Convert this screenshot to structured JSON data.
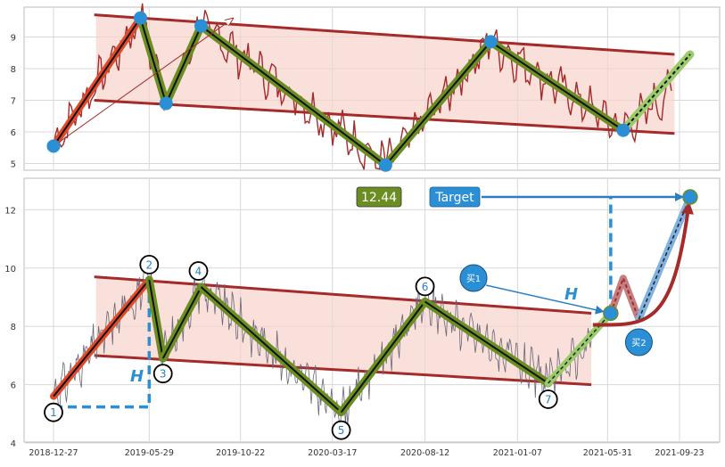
{
  "colors": {
    "channel_fill": "#f6d3cc",
    "channel_line": "#a52a2a",
    "price_top": "#a52a2a",
    "price_bottom": "#666677",
    "wave_outer": "#6b8e23",
    "wave_inner": "#111111",
    "marker": "#2b8fd6",
    "target_text": "#ffffff",
    "value_badge": "#6b8e23",
    "grid": "#d8d8d8",
    "dashed": "#2b8fd6"
  },
  "chart_data": [
    {
      "type": "line",
      "panel": "top",
      "title": "",
      "xlabel": "",
      "ylabel": "",
      "ylim": [
        4.75,
        10
      ],
      "ytick_labels": [
        "5",
        "6",
        "7",
        "8",
        "9"
      ],
      "grid": true,
      "x_range": [
        "2018-12-27",
        "2021-10-15"
      ],
      "channel": {
        "upper": [
          [
            "2019-03-05",
            9.7
          ],
          [
            "2021-09-15",
            8.45
          ]
        ],
        "lower": [
          [
            "2019-03-05",
            7.0
          ],
          [
            "2021-09-15",
            5.95
          ]
        ]
      },
      "pivots": [
        {
          "date": "2018-12-27",
          "value": 5.55
        },
        {
          "date": "2019-05-15",
          "value": 9.6
        },
        {
          "date": "2019-06-25",
          "value": 6.9
        },
        {
          "date": "2019-08-20",
          "value": 9.35
        },
        {
          "date": "2020-06-10",
          "value": 4.95
        },
        {
          "date": "2020-11-25",
          "value": 8.85
        },
        {
          "date": "2021-06-25",
          "value": 6.05
        },
        {
          "date": "2021-10-10",
          "value": 8.45
        }
      ],
      "arrow": {
        "from": [
          "2018-12-27",
          5.55
        ],
        "to": [
          "2019-10-10",
          9.7
        ]
      }
    },
    {
      "type": "line",
      "panel": "bottom",
      "title": "",
      "xlabel": "",
      "ylabel": "",
      "ylim": [
        4,
        13
      ],
      "ytick_labels": [
        "4",
        "6",
        "8",
        "10",
        "12"
      ],
      "xtick_labels": [
        "2018-12-27",
        "2019-05-29",
        "2019-10-22",
        "2020-03-17",
        "2020-08-12",
        "2021-01-07",
        "2021-05-31",
        "2021-09-23"
      ],
      "grid": true,
      "channel": {
        "upper": [
          [
            "2019-03-05",
            9.7
          ],
          [
            "2021-05-05",
            8.45
          ]
        ],
        "lower": [
          [
            "2019-03-05",
            7.0
          ],
          [
            "2021-05-05",
            6.0
          ]
        ]
      },
      "pivots": [
        {
          "label": "1",
          "date": "2018-12-27",
          "value": 5.6
        },
        {
          "label": "2",
          "date": "2019-05-29",
          "value": 9.6
        },
        {
          "label": "3",
          "date": "2019-06-20",
          "value": 6.9
        },
        {
          "label": "4",
          "date": "2019-08-20",
          "value": 9.35
        },
        {
          "label": "5",
          "date": "2020-03-31",
          "value": 5.05
        },
        {
          "label": "6",
          "date": "2020-08-12",
          "value": 8.85
        },
        {
          "label": "7",
          "date": "2021-02-25",
          "value": 6.05
        }
      ],
      "projection": [
        {
          "date": "2021-02-25",
          "value": 6.05
        },
        {
          "date": "2021-06-05",
          "value": 8.45
        }
      ],
      "buy_points": [
        {
          "label": "买1",
          "date": "2021-06-05",
          "value": 8.45
        },
        {
          "label": "买2",
          "date": "2021-07-20",
          "value": 8.25
        }
      ],
      "retrace": [
        {
          "date": "2021-06-05",
          "value": 8.45
        },
        {
          "date": "2021-06-25",
          "value": 9.65
        },
        {
          "date": "2021-07-20",
          "value": 8.25
        }
      ],
      "target_value": 12.44,
      "target_label": "Target",
      "target_point": {
        "date": "2021-10-10",
        "value": 12.44
      },
      "h_labels": [
        "H",
        "H"
      ]
    }
  ]
}
